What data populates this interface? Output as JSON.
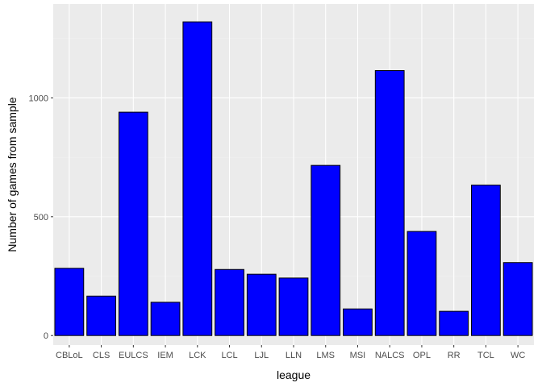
{
  "chart_data": {
    "type": "bar",
    "title": "",
    "xlabel": "league",
    "ylabel": "Number of games from sample",
    "categories": [
      "CBLoL",
      "CLS",
      "EULCS",
      "IEM",
      "LCK",
      "LCL",
      "LJL",
      "LLN",
      "LMS",
      "MSI",
      "NALCS",
      "OPL",
      "RR",
      "TCL",
      "WC"
    ],
    "values": [
      283,
      166,
      940,
      140,
      1320,
      278,
      258,
      242,
      716,
      112,
      1115,
      438,
      102,
      633,
      307
    ],
    "ylim": [
      -40,
      1395
    ],
    "yticks": [
      0,
      500,
      1000
    ],
    "grid": true,
    "legend": "none",
    "colors": {
      "bar_fill": "#0000ff",
      "bar_stroke": "#000000",
      "panel_background": "#ebebeb",
      "grid_major": "#ffffff",
      "grid_minor": "#f2f2f2"
    }
  }
}
